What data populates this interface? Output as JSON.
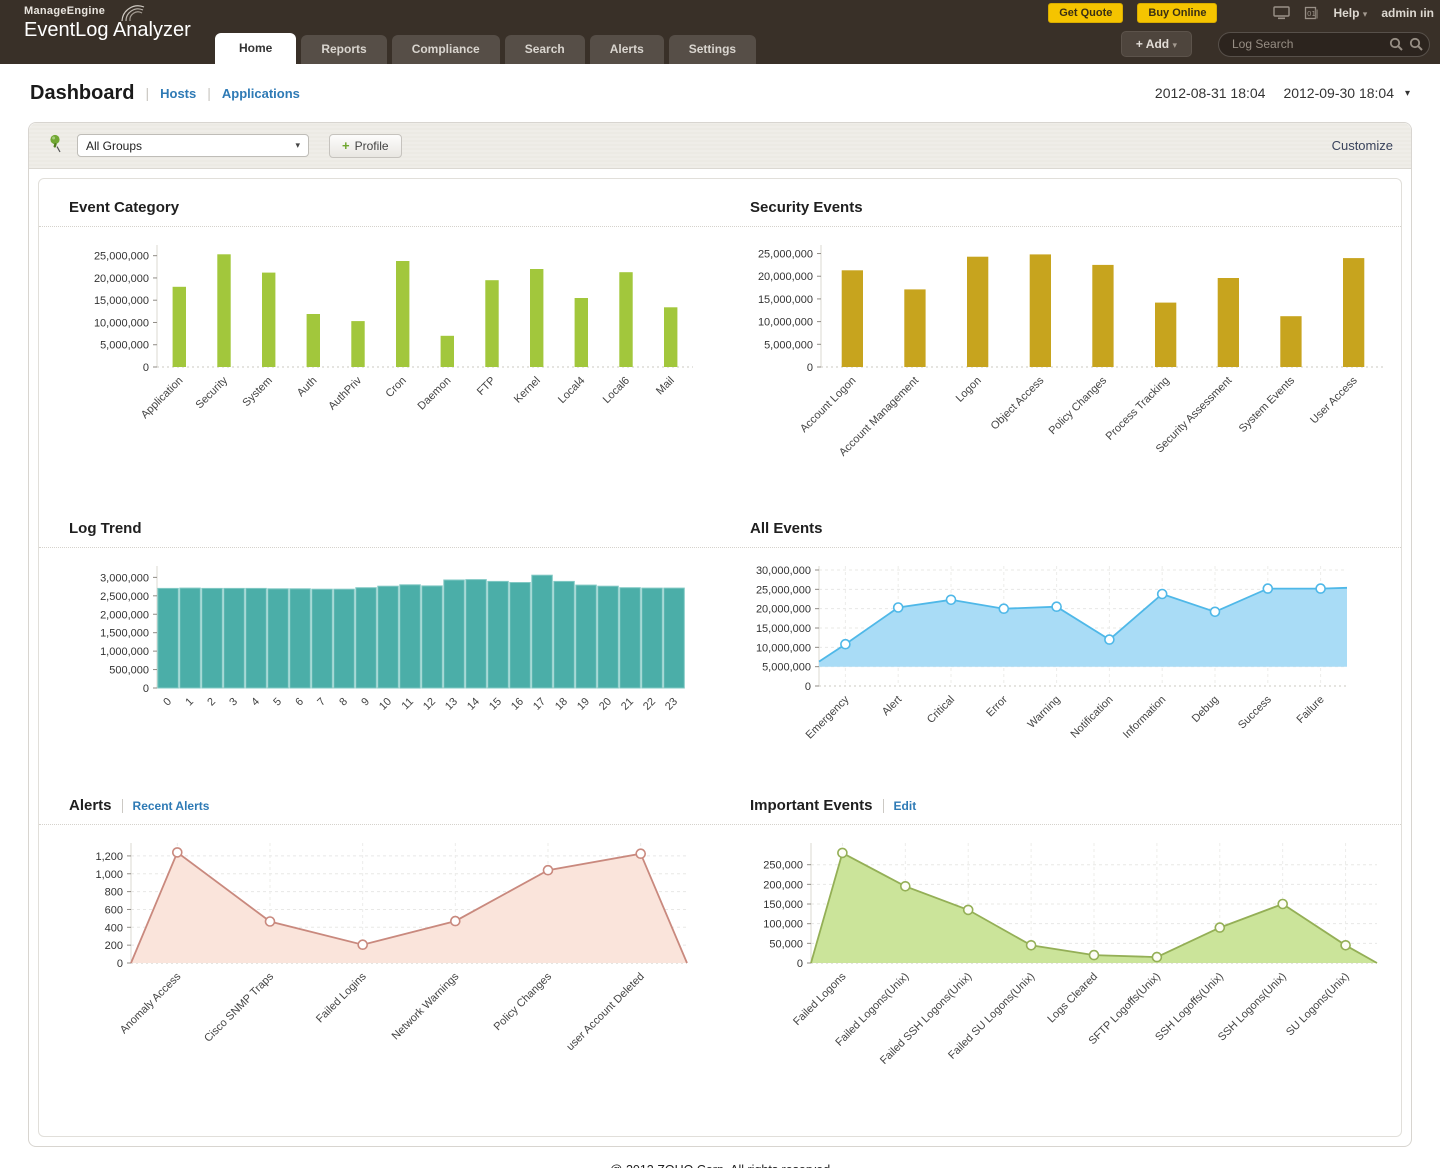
{
  "header": {
    "brand": {
      "company": "ManageEngine",
      "product": "EventLog Analyzer"
    },
    "get_quote": "Get Quote",
    "buy_online": "Buy Online",
    "help_label": "Help",
    "user_label": "admin ıin",
    "tabs": [
      {
        "label": "Home"
      },
      {
        "label": "Reports"
      },
      {
        "label": "Compliance"
      },
      {
        "label": "Search"
      },
      {
        "label": "Alerts"
      },
      {
        "label": "Settings"
      }
    ],
    "add_button": "+ Add",
    "search_placeholder": "Log Search"
  },
  "toolbar": {
    "title": "Dashboard",
    "hosts_link": "Hosts",
    "applications_link": "Applications",
    "date_from": "2012-08-31 18:04",
    "date_to": "2012-09-30 18:04"
  },
  "filter_bar": {
    "group_select_value": "All Groups",
    "profile_button": "Profile",
    "customize_link": "Customize"
  },
  "footer": "@ 2012 ZOHO Corp. All rights reserved",
  "chart_data": [
    {
      "type": "bar",
      "title": "Event Category",
      "categories": [
        "Application",
        "Security",
        "System",
        "Auth",
        "AuthPriv",
        "Cron",
        "Daemon",
        "FTP",
        "Kernel",
        "Local4",
        "Local6",
        "Mail"
      ],
      "values": [
        18000000,
        25300000,
        21200000,
        11900000,
        10300000,
        23800000,
        7000000,
        19500000,
        22000000,
        15500000,
        21300000,
        13400000
      ],
      "ylim": [
        0,
        26500000
      ],
      "ytick": 5000000,
      "ytick_max": 25000000,
      "grid": false,
      "legend": "none",
      "colors": {
        "bar": "#A2C73C"
      }
    },
    {
      "type": "bar",
      "title": "Security Events",
      "categories": [
        "Account Logon",
        "Account Management",
        "Logon",
        "Object Access",
        "Policy Changes",
        "Process Tracking",
        "Security Assessment",
        "System Events",
        "User Access"
      ],
      "values": [
        21300000,
        17100000,
        24300000,
        24800000,
        22500000,
        14200000,
        19600000,
        11200000,
        24000000
      ],
      "ylim": [
        0,
        26000000
      ],
      "ytick": 5000000,
      "ytick_max": 25000000,
      "grid": false,
      "legend": "none",
      "colors": {
        "bar": "#C7A41E"
      }
    },
    {
      "type": "bar",
      "title": "Log Trend",
      "categories": [
        "0",
        "1",
        "2",
        "3",
        "4",
        "5",
        "6",
        "7",
        "8",
        "9",
        "10",
        "11",
        "12",
        "13",
        "14",
        "15",
        "16",
        "17",
        "18",
        "19",
        "20",
        "21",
        "22",
        "23"
      ],
      "values": [
        2700000,
        2710000,
        2700000,
        2700000,
        2700000,
        2690000,
        2690000,
        2680000,
        2680000,
        2720000,
        2760000,
        2800000,
        2770000,
        2930000,
        2940000,
        2890000,
        2860000,
        3060000,
        2890000,
        2790000,
        2760000,
        2720000,
        2710000,
        2710000
      ],
      "ylim": [
        0,
        3200000
      ],
      "ytick": 500000,
      "ytick_max": 3000000,
      "grid": false,
      "legend": "none",
      "colors": {
        "bar": "#4BAEA8",
        "bar_stroke": "#82C9C4"
      }
    },
    {
      "type": "area",
      "title": "All Events",
      "categories": [
        "Emergency",
        "Alert",
        "Critical",
        "Error",
        "Warning",
        "Notification",
        "Information",
        "Debug",
        "Success",
        "Failure"
      ],
      "values": [
        10800000,
        20300000,
        22300000,
        20000000,
        20500000,
        12000000,
        23800000,
        19200000,
        25200000,
        25200000
      ],
      "edge_start": 6300000,
      "edge_end": 25400000,
      "baseline": 5000000,
      "ylim": [
        0,
        30000000
      ],
      "ytick": 5000000,
      "ytick_max": 30000000,
      "grid": true,
      "legend": "none",
      "colors": {
        "line": "#4FB8E8",
        "fill": "#A9DCF6",
        "marker": "#FFFFFF"
      }
    },
    {
      "type": "area",
      "title": "Alerts",
      "title_link": "Recent Alerts",
      "categories": [
        "Anomaly Access",
        "Cisco SNMP Traps",
        "Failed Logins",
        "Network Warnings",
        "Policy Changes",
        "user Account Deleted"
      ],
      "values": [
        1240,
        465,
        205,
        470,
        1040,
        1225
      ],
      "edge_start": 0,
      "edge_end": 0,
      "baseline": 0,
      "ylim": [
        0,
        1300
      ],
      "ytick": 200,
      "ytick_max": 1200,
      "grid": true,
      "legend": "none",
      "colors": {
        "line": "#C9897E",
        "fill": "#FAE4DB",
        "marker": "#FFFFFF"
      }
    },
    {
      "type": "area",
      "title": "Important Events",
      "title_link": "Edit",
      "categories": [
        "Failed Logons",
        "Failed Logons(Unix)",
        "Failed SSH Logons(Unix)",
        "Failed SU Logons(Unix)",
        "Logs Cleared",
        "SFTP Logoffs(Unix)",
        "SSH Logoffs(Unix)",
        "SSH Logons(Unix)",
        "SU Logons(Unix)"
      ],
      "values": [
        280000,
        195000,
        135000,
        45000,
        20000,
        15000,
        90000,
        150000,
        45000
      ],
      "edge_start": 0,
      "edge_end": 0,
      "baseline": 0,
      "ylim": [
        0,
        295000
      ],
      "ytick": 50000,
      "ytick_max": 250000,
      "grid": true,
      "legend": "none",
      "colors": {
        "line": "#94AF56",
        "fill": "#CBE49A",
        "marker": "#FDFDF6"
      }
    }
  ]
}
